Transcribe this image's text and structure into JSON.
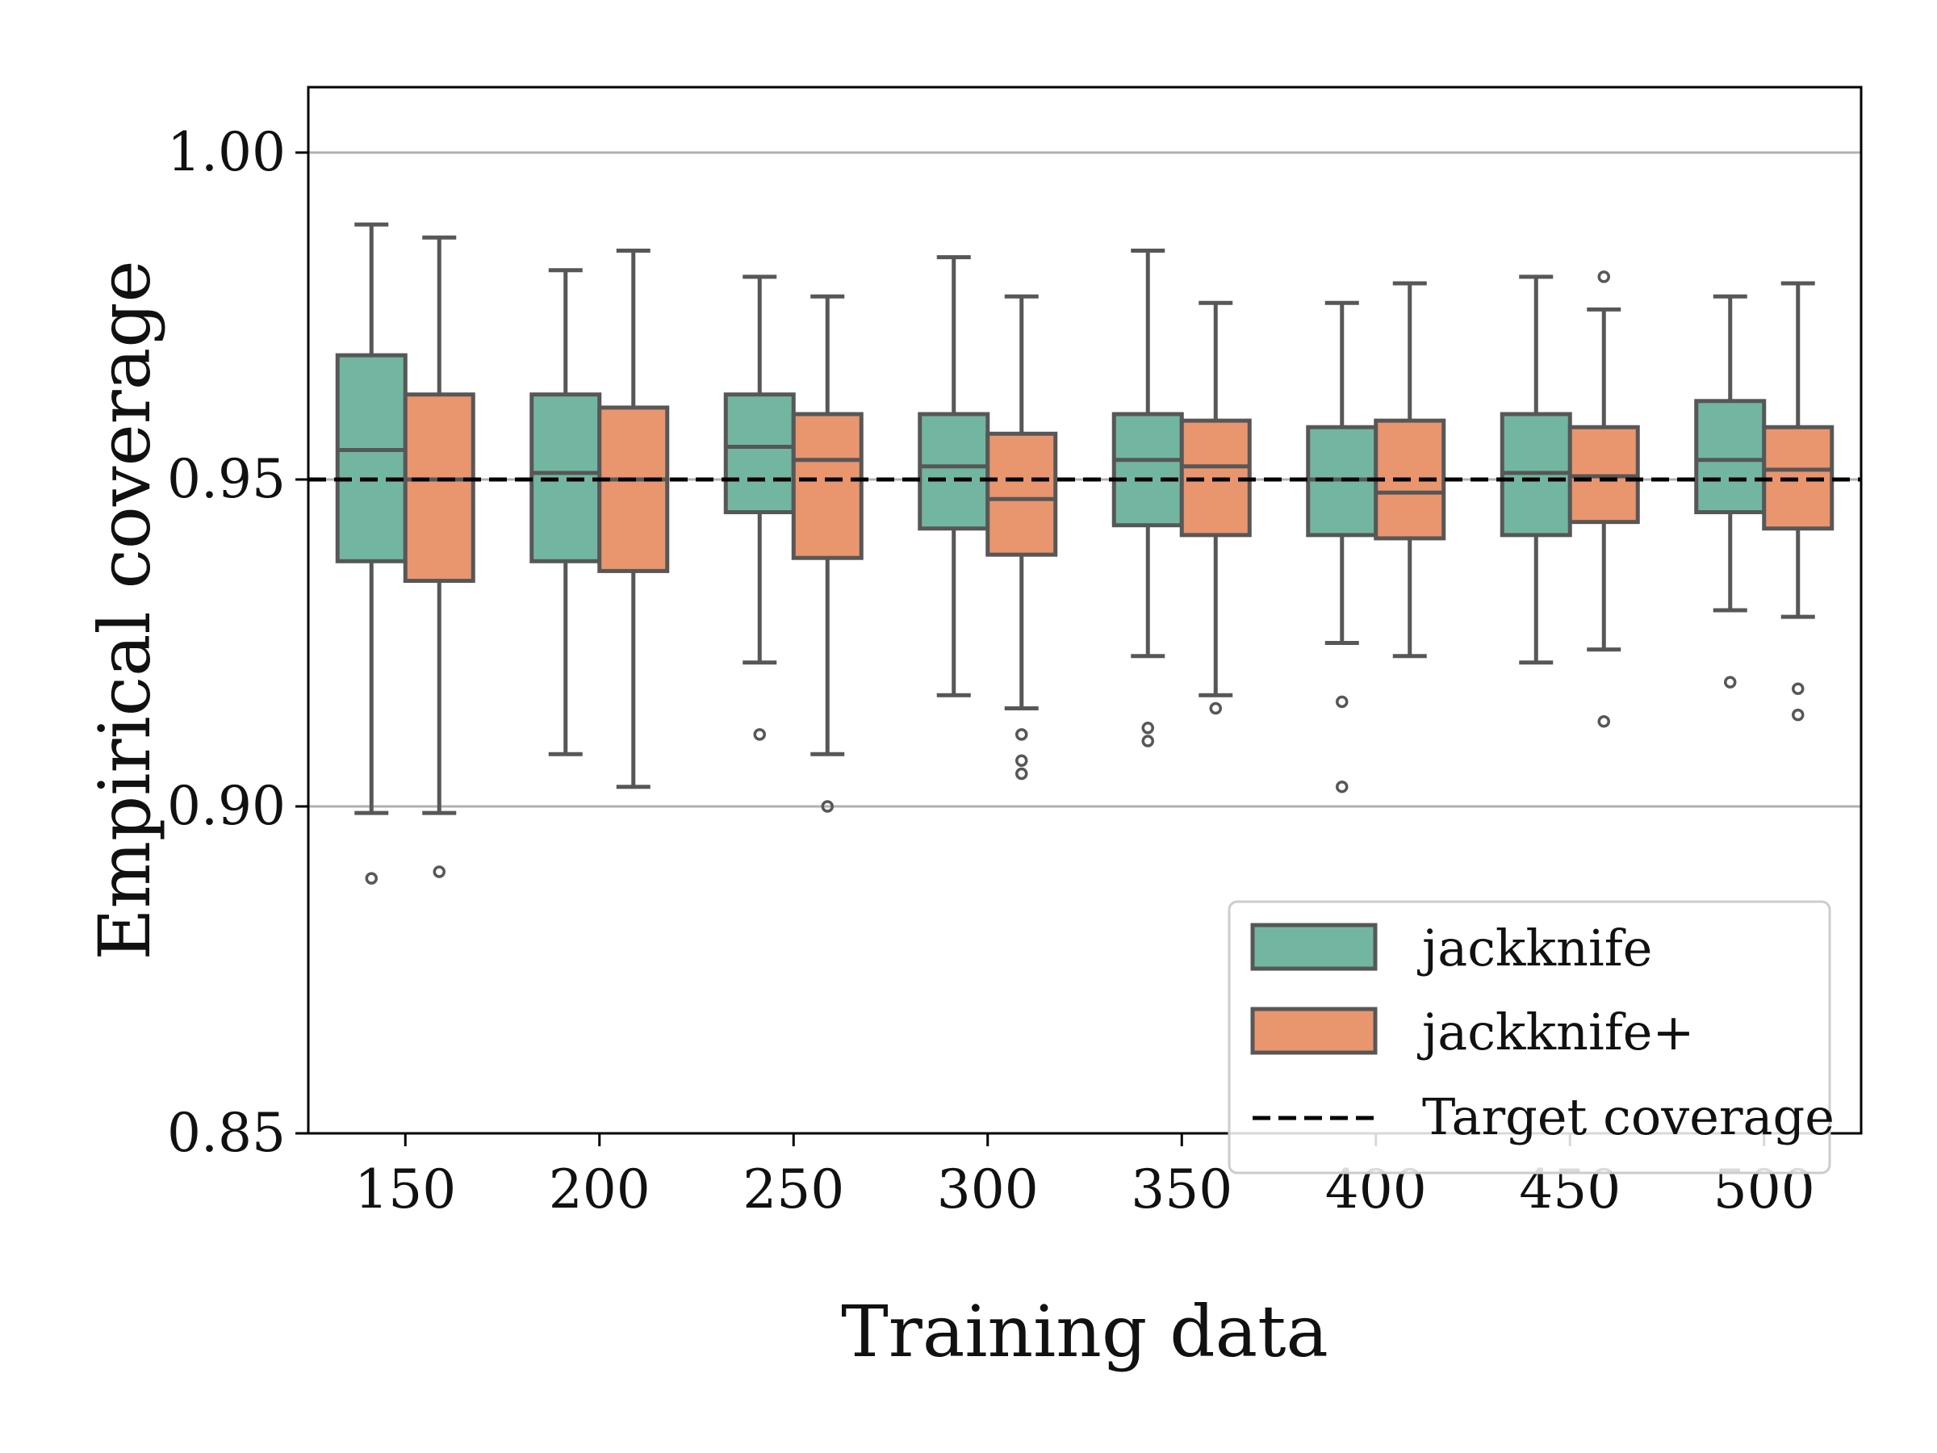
{
  "chart_data": {
    "type": "box",
    "title": "",
    "xlabel": "Training data",
    "ylabel": "Empirical coverage",
    "ylim": [
      0.85,
      1.01
    ],
    "yticks": [
      "0.85",
      "0.90",
      "0.95",
      "1.00"
    ],
    "grid": "horizontal",
    "categories": [
      "150",
      "200",
      "250",
      "300",
      "350",
      "400",
      "450",
      "500"
    ],
    "reference_line": {
      "label": "Target coverage",
      "value": 0.95,
      "style": "dashed",
      "color": "#000000"
    },
    "legend_position": "lower-right",
    "series": [
      {
        "name": "jackknife",
        "color": "#72b6a1",
        "boxes": [
          {
            "category": "150",
            "whisker_low": 0.899,
            "q1": 0.9375,
            "median": 0.9545,
            "q3": 0.969,
            "whisker_high": 0.989,
            "outliers": [
              0.889
            ]
          },
          {
            "category": "200",
            "whisker_low": 0.908,
            "q1": 0.9375,
            "median": 0.951,
            "q3": 0.963,
            "whisker_high": 0.982,
            "outliers": []
          },
          {
            "category": "250",
            "whisker_low": 0.922,
            "q1": 0.945,
            "median": 0.955,
            "q3": 0.963,
            "whisker_high": 0.981,
            "outliers": [
              0.911
            ]
          },
          {
            "category": "300",
            "whisker_low": 0.917,
            "q1": 0.9425,
            "median": 0.952,
            "q3": 0.96,
            "whisker_high": 0.984,
            "outliers": []
          },
          {
            "category": "350",
            "whisker_low": 0.923,
            "q1": 0.943,
            "median": 0.953,
            "q3": 0.96,
            "whisker_high": 0.985,
            "outliers": [
              0.912,
              0.91
            ]
          },
          {
            "category": "400",
            "whisker_low": 0.925,
            "q1": 0.9415,
            "median": 0.95,
            "q3": 0.958,
            "whisker_high": 0.977,
            "outliers": [
              0.916,
              0.903
            ]
          },
          {
            "category": "450",
            "whisker_low": 0.922,
            "q1": 0.9415,
            "median": 0.951,
            "q3": 0.96,
            "whisker_high": 0.981,
            "outliers": []
          },
          {
            "category": "500",
            "whisker_low": 0.93,
            "q1": 0.945,
            "median": 0.953,
            "q3": 0.962,
            "whisker_high": 0.978,
            "outliers": [
              0.919
            ]
          }
        ]
      },
      {
        "name": "jackknife+",
        "color": "#e9956e",
        "boxes": [
          {
            "category": "150",
            "whisker_low": 0.899,
            "q1": 0.9345,
            "median": 0.95,
            "q3": 0.963,
            "whisker_high": 0.987,
            "outliers": [
              0.89
            ]
          },
          {
            "category": "200",
            "whisker_low": 0.903,
            "q1": 0.936,
            "median": 0.95,
            "q3": 0.961,
            "whisker_high": 0.985,
            "outliers": []
          },
          {
            "category": "250",
            "whisker_low": 0.908,
            "q1": 0.938,
            "median": 0.953,
            "q3": 0.96,
            "whisker_high": 0.978,
            "outliers": [
              0.9
            ]
          },
          {
            "category": "300",
            "whisker_low": 0.915,
            "q1": 0.9385,
            "median": 0.947,
            "q3": 0.957,
            "whisker_high": 0.978,
            "outliers": [
              0.911,
              0.907,
              0.905
            ]
          },
          {
            "category": "350",
            "whisker_low": 0.917,
            "q1": 0.9415,
            "median": 0.952,
            "q3": 0.959,
            "whisker_high": 0.977,
            "outliers": [
              0.915
            ]
          },
          {
            "category": "400",
            "whisker_low": 0.923,
            "q1": 0.941,
            "median": 0.948,
            "q3": 0.959,
            "whisker_high": 0.98,
            "outliers": []
          },
          {
            "category": "450",
            "whisker_low": 0.924,
            "q1": 0.9435,
            "median": 0.9505,
            "q3": 0.958,
            "whisker_high": 0.976,
            "outliers": [
              0.981,
              0.913
            ]
          },
          {
            "category": "500",
            "whisker_low": 0.929,
            "q1": 0.9425,
            "median": 0.9515,
            "q3": 0.958,
            "whisker_high": 0.98,
            "outliers": [
              0.918,
              0.914
            ]
          }
        ]
      }
    ]
  },
  "colors": {
    "edge": "#575757",
    "grid": "#b0b0b0",
    "axis": "#000000"
  }
}
